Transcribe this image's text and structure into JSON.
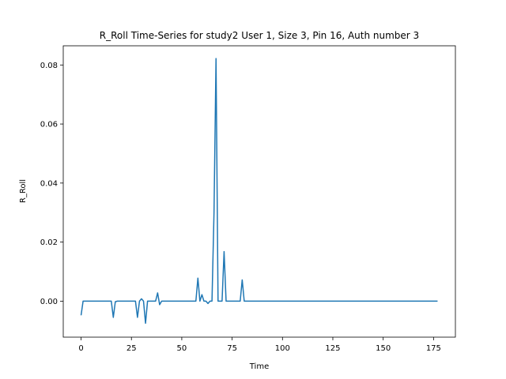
{
  "chart_data": {
    "type": "line",
    "title": "R_Roll Time-Series for study2 User 1, Size 3, Pin 16, Auth number 3",
    "xlabel": "Time",
    "ylabel": "R_Roll",
    "xlim": [
      -8.85,
      185.85
    ],
    "ylim": [
      -0.0122,
      0.0865
    ],
    "xticks": [
      0,
      25,
      50,
      75,
      100,
      125,
      150,
      175
    ],
    "yticks": [
      0.0,
      0.02,
      0.04,
      0.06,
      0.08
    ],
    "xtick_labels": [
      "0",
      "25",
      "50",
      "75",
      "100",
      "125",
      "150",
      "175"
    ],
    "ytick_labels": [
      "0.00",
      "0.02",
      "0.04",
      "0.06",
      "0.08"
    ],
    "grid": false,
    "legend": "none",
    "series": [
      {
        "color": "#1f77b4",
        "x": [
          0,
          1,
          2,
          15,
          16,
          17,
          18,
          27,
          28,
          29,
          30,
          31,
          32,
          33,
          37,
          38,
          39,
          40,
          57,
          58,
          59,
          60,
          61,
          62,
          63,
          64,
          65,
          66,
          67,
          68,
          69,
          70,
          71,
          72,
          79,
          80,
          81,
          177
        ],
        "y": [
          -0.0048,
          0.0,
          0.0,
          0.0,
          -0.0055,
          -0.0002,
          0.0,
          0.0,
          -0.0055,
          0.0,
          0.0008,
          0.0,
          -0.0075,
          0.0,
          0.0,
          0.0028,
          -0.0012,
          0.0,
          0.0,
          0.0078,
          0.0,
          0.0022,
          0.0,
          0.0,
          -0.0008,
          0.0,
          0.0,
          0.03,
          0.0822,
          0.0,
          0.0,
          0.0,
          0.0168,
          0.0,
          0.0,
          0.0072,
          0.0,
          0.0
        ]
      }
    ]
  }
}
